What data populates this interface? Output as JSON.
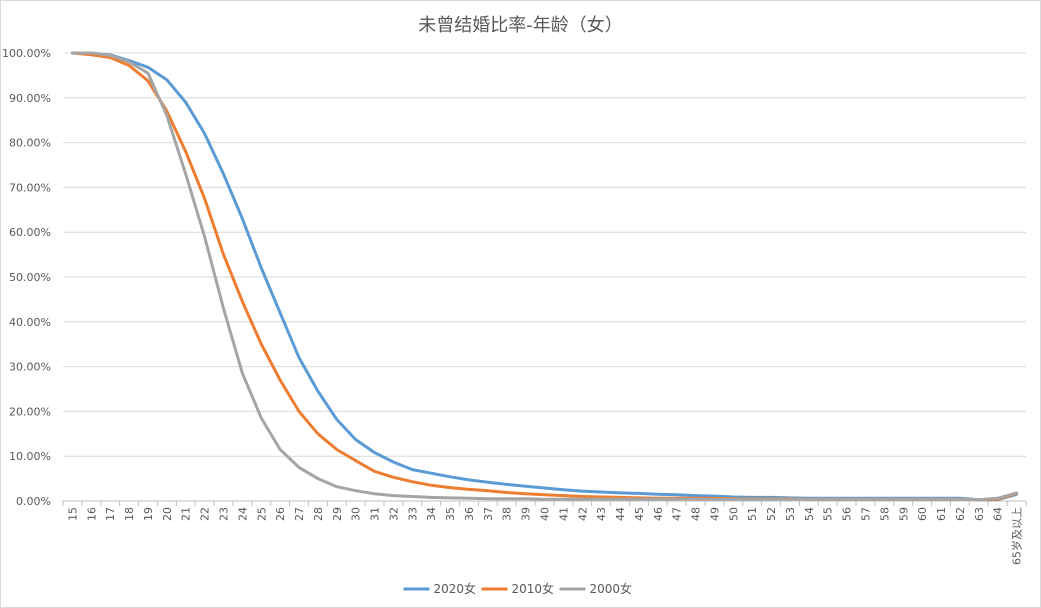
{
  "chart_data": {
    "type": "line",
    "title": "未曾结婚比率-年龄（女）",
    "xlabel": "",
    "ylabel": "",
    "ylim": [
      0,
      1
    ],
    "y_tick_labels": [
      "0.00%",
      "10.00%",
      "20.00%",
      "30.00%",
      "40.00%",
      "50.00%",
      "60.00%",
      "70.00%",
      "80.00%",
      "90.00%",
      "100.00%"
    ],
    "grid": true,
    "legend_position": "bottom",
    "categories": [
      "15",
      "16",
      "17",
      "18",
      "19",
      "20",
      "21",
      "22",
      "23",
      "24",
      "25",
      "26",
      "27",
      "28",
      "29",
      "30",
      "31",
      "32",
      "33",
      "34",
      "35",
      "36",
      "37",
      "38",
      "39",
      "40",
      "41",
      "42",
      "43",
      "44",
      "45",
      "46",
      "47",
      "48",
      "49",
      "50",
      "51",
      "52",
      "53",
      "54",
      "55",
      "56",
      "57",
      "58",
      "59",
      "60",
      "61",
      "62",
      "63",
      "64",
      "65岁及以上"
    ],
    "series": [
      {
        "name": "2020女",
        "color": "#5B9BD5",
        "values": [
          1.0,
          0.998,
          0.996,
          0.983,
          0.968,
          0.94,
          0.89,
          0.82,
          0.73,
          0.63,
          0.52,
          0.42,
          0.32,
          0.245,
          0.182,
          0.137,
          0.108,
          0.087,
          0.07,
          0.062,
          0.054,
          0.047,
          0.042,
          0.037,
          0.033,
          0.029,
          0.025,
          0.022,
          0.02,
          0.018,
          0.017,
          0.015,
          0.014,
          0.012,
          0.011,
          0.009,
          0.008,
          0.008,
          0.007,
          0.006,
          0.006,
          0.006,
          0.006,
          0.006,
          0.006,
          0.006,
          0.006,
          0.006,
          0.003,
          0.003,
          0.015
        ]
      },
      {
        "name": "2010女",
        "color": "#ED7D31",
        "values": [
          1.0,
          0.996,
          0.99,
          0.972,
          0.938,
          0.87,
          0.78,
          0.675,
          0.55,
          0.445,
          0.35,
          0.27,
          0.2,
          0.15,
          0.115,
          0.09,
          0.066,
          0.053,
          0.043,
          0.035,
          0.03,
          0.026,
          0.023,
          0.019,
          0.016,
          0.014,
          0.012,
          0.01,
          0.009,
          0.008,
          0.007,
          0.006,
          0.006,
          0.006,
          0.006,
          0.005,
          0.005,
          0.005,
          0.005,
          0.004,
          0.004,
          0.004,
          0.004,
          0.004,
          0.004,
          0.004,
          0.004,
          0.004,
          0.003,
          0.004,
          0.017
        ]
      },
      {
        "name": "2000女",
        "color": "#A5A5A5",
        "values": [
          1.0,
          1.0,
          0.995,
          0.98,
          0.955,
          0.86,
          0.73,
          0.59,
          0.43,
          0.285,
          0.185,
          0.115,
          0.075,
          0.05,
          0.032,
          0.023,
          0.016,
          0.012,
          0.01,
          0.008,
          0.007,
          0.006,
          0.005,
          0.005,
          0.005,
          0.004,
          0.004,
          0.004,
          0.004,
          0.004,
          0.004,
          0.004,
          0.004,
          0.004,
          0.004,
          0.004,
          0.004,
          0.004,
          0.004,
          0.004,
          0.004,
          0.004,
          0.004,
          0.004,
          0.004,
          0.004,
          0.004,
          0.004,
          0.003,
          0.006,
          0.018
        ]
      }
    ]
  }
}
